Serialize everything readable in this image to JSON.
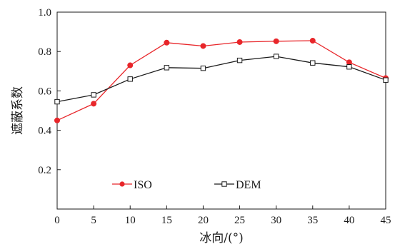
{
  "chart_data": {
    "type": "line",
    "xlabel": "冰向/(°)",
    "ylabel": "遮蔽系数",
    "xlim": [
      0,
      45
    ],
    "ylim": [
      0,
      1.0
    ],
    "x_ticks": [
      "0",
      "5",
      "10",
      "15",
      "20",
      "25",
      "30",
      "35",
      "40",
      "45"
    ],
    "y_ticks": [
      "0.2",
      "0.4",
      "0.6",
      "0.8",
      "1.0"
    ],
    "x": [
      0,
      5,
      10,
      15,
      20,
      25,
      30,
      35,
      40,
      45
    ],
    "series": [
      {
        "name": "ISO",
        "marker": "filled-circle",
        "color": "#e8262a",
        "values": [
          0.45,
          0.535,
          0.73,
          0.845,
          0.828,
          0.848,
          0.852,
          0.855,
          0.745,
          0.665
        ]
      },
      {
        "name": "DEM",
        "marker": "open-square",
        "color": "#1a1a1a",
        "values": [
          0.545,
          0.58,
          0.66,
          0.718,
          0.715,
          0.755,
          0.775,
          0.742,
          0.722,
          0.655
        ]
      }
    ],
    "grid": false,
    "legend": "bottom-left, inside plot, horizontal"
  }
}
